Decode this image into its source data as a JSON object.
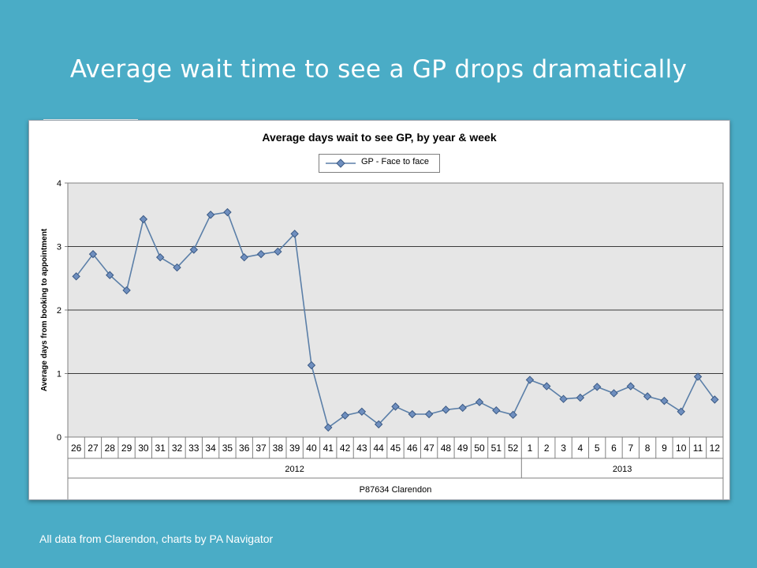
{
  "slide": {
    "title": "Average wait time to see a GP drops dramatically",
    "footer": "All data from Clarendon, charts by PA Navigator"
  },
  "colors": {
    "background": "#4aacc6",
    "plot_area": "#e6e6e6",
    "series_line": "#5b7fa8",
    "marker_fill": "#6f8fbf",
    "marker_stroke": "#3b5a85"
  },
  "chart_data": {
    "type": "line",
    "title": "Average days wait to see GP, by year & week",
    "ylabel": "Average days from booking to appointment",
    "ylim": [
      0,
      4
    ],
    "yticks": [
      0,
      1,
      2,
      3,
      4
    ],
    "grid": true,
    "legend_position": "top-center",
    "categories": [
      "26",
      "27",
      "28",
      "29",
      "30",
      "31",
      "32",
      "33",
      "34",
      "35",
      "36",
      "37",
      "38",
      "39",
      "40",
      "41",
      "42",
      "43",
      "44",
      "45",
      "46",
      "47",
      "48",
      "49",
      "50",
      "51",
      "52",
      "1",
      "2",
      "3",
      "4",
      "5",
      "6",
      "7",
      "8",
      "9",
      "10",
      "11",
      "12"
    ],
    "year_groups": [
      {
        "label": "2012",
        "count": 27
      },
      {
        "label": "2013",
        "count": 12
      }
    ],
    "site_label": "P87634 Clarendon",
    "series": [
      {
        "name": "GP - Face to face",
        "values": [
          2.53,
          2.88,
          2.55,
          2.31,
          3.43,
          2.83,
          2.67,
          2.95,
          3.5,
          3.54,
          2.83,
          2.88,
          2.92,
          3.2,
          1.13,
          0.15,
          0.34,
          0.4,
          0.2,
          0.48,
          0.36,
          0.36,
          0.43,
          0.46,
          0.55,
          0.42,
          0.35,
          0.9,
          0.8,
          0.6,
          0.62,
          0.79,
          0.69,
          0.8,
          0.64,
          0.57,
          0.4,
          0.95,
          0.59
        ]
      }
    ]
  }
}
